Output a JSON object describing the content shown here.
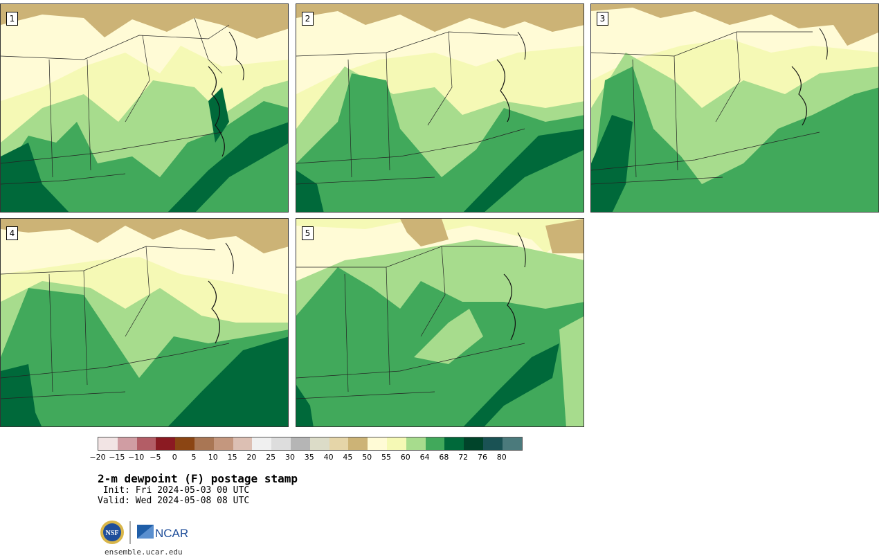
{
  "panels": [
    {
      "id": "1",
      "label": "1"
    },
    {
      "id": "2",
      "label": "2"
    },
    {
      "id": "3",
      "label": "3"
    },
    {
      "id": "4",
      "label": "4"
    },
    {
      "id": "5",
      "label": "5"
    }
  ],
  "colorbar": {
    "colors": [
      "#f2e4e4",
      "#d09da3",
      "#b35d66",
      "#8b1a22",
      "#8b4513",
      "#a97654",
      "#c4977e",
      "#dcbfb3",
      "#f0f0f0",
      "#dddddd",
      "#b5b5b5",
      "#dcdcc8",
      "#e5d5a8",
      "#ccb376",
      "#fffbd6",
      "#f5f9b5",
      "#a7dc8d",
      "#41a95b",
      "#00693a",
      "#00442a",
      "#1a5254",
      "#4b7a7c"
    ],
    "labels": [
      "−20",
      "−15",
      "−10",
      "−5",
      "0",
      "5",
      "10",
      "15",
      "20",
      "25",
      "30",
      "35",
      "40",
      "45",
      "50",
      "55",
      "60",
      "64",
      "68",
      "72",
      "76",
      "80"
    ]
  },
  "title": "2-m dewpoint (F) postage stamp",
  "init_text": " Init: Fri 2024-05-03 00 UTC",
  "valid_text": "Valid: Wed 2024-05-08 08 UTC",
  "logo": {
    "nsf_text": "NSF",
    "ncar_text": "NCAR"
  },
  "site": "ensemble.ucar.edu"
}
